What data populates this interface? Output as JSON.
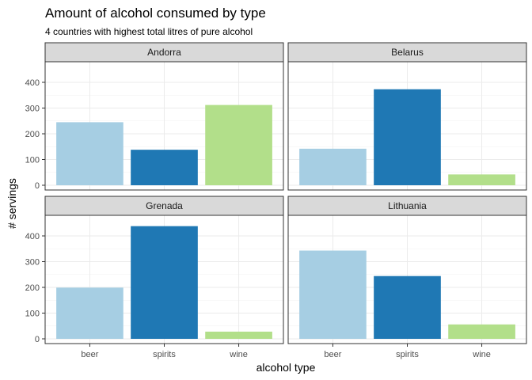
{
  "chart_data": {
    "type": "bar",
    "title": "Amount of alcohol consumed by type",
    "subtitle": "4 countries with highest total litres of pure alcohol",
    "xlabel": "alcohol type",
    "ylabel": "# servings",
    "categories": [
      "beer",
      "spirits",
      "wine"
    ],
    "ylim": [
      0,
      480
    ],
    "yticks": [
      0,
      100,
      200,
      300,
      400
    ],
    "grid": true,
    "legend": "none",
    "facets": [
      {
        "name": "Andorra",
        "values": [
          245,
          138,
          312
        ]
      },
      {
        "name": "Belarus",
        "values": [
          142,
          373,
          42
        ]
      },
      {
        "name": "Grenada",
        "values": [
          199,
          438,
          28
        ]
      },
      {
        "name": "Lithuania",
        "values": [
          343,
          244,
          56
        ]
      }
    ],
    "colors": {
      "beer": "#a6cee3",
      "spirits": "#1f78b4",
      "wine": "#b2df8a"
    }
  }
}
